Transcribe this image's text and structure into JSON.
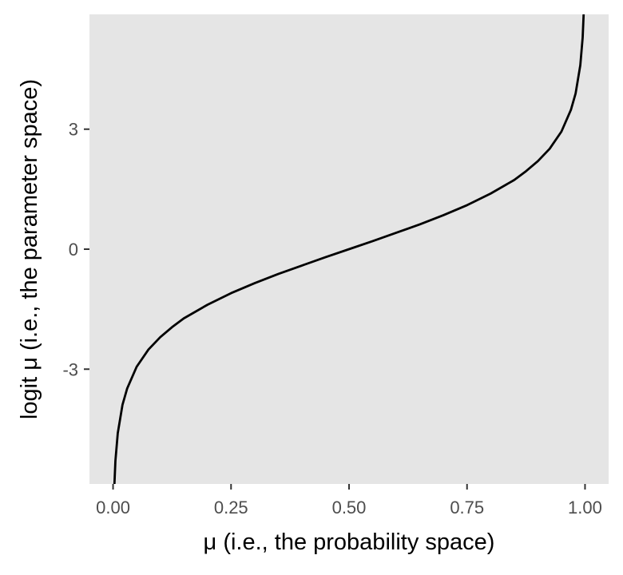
{
  "chart_data": {
    "type": "line",
    "xlabel": "μ (i.e., the probability space)",
    "ylabel": "logit μ (i.e., the parameter space)",
    "xlim": [
      -0.05,
      1.05
    ],
    "ylim": [
      -5.87,
      5.87
    ],
    "x_ticks": [
      {
        "value": 0,
        "label": "0.00"
      },
      {
        "value": 0.25,
        "label": "0.25"
      },
      {
        "value": 0.5,
        "label": "0.50"
      },
      {
        "value": 0.75,
        "label": "0.75"
      },
      {
        "value": 1,
        "label": "1.00"
      }
    ],
    "y_ticks": [
      {
        "value": -3,
        "label": "-3"
      },
      {
        "value": 0,
        "label": "0"
      },
      {
        "value": 3,
        "label": "3"
      }
    ],
    "grid": false,
    "panel_background": "#e5e5e5",
    "line_color": "#000000",
    "series": [
      {
        "x": [
          0.001,
          0.0025,
          0.005,
          0.01,
          0.02,
          0.03,
          0.05,
          0.075,
          0.1,
          0.125,
          0.15,
          0.2,
          0.25,
          0.3,
          0.35,
          0.4,
          0.45,
          0.5,
          0.55,
          0.6,
          0.65,
          0.7,
          0.75,
          0.8,
          0.85,
          0.875,
          0.9,
          0.925,
          0.95,
          0.97,
          0.98,
          0.99,
          0.995,
          0.9975,
          0.999
        ],
        "y": [
          -6.91,
          -5.99,
          -5.29,
          -4.6,
          -3.89,
          -3.48,
          -2.94,
          -2.51,
          -2.2,
          -1.95,
          -1.73,
          -1.39,
          -1.1,
          -0.85,
          -0.62,
          -0.41,
          -0.2,
          0,
          0.2,
          0.41,
          0.62,
          0.85,
          1.1,
          1.39,
          1.73,
          1.95,
          2.2,
          2.51,
          2.94,
          3.48,
          3.89,
          4.6,
          5.29,
          5.99,
          6.91
        ]
      }
    ]
  }
}
